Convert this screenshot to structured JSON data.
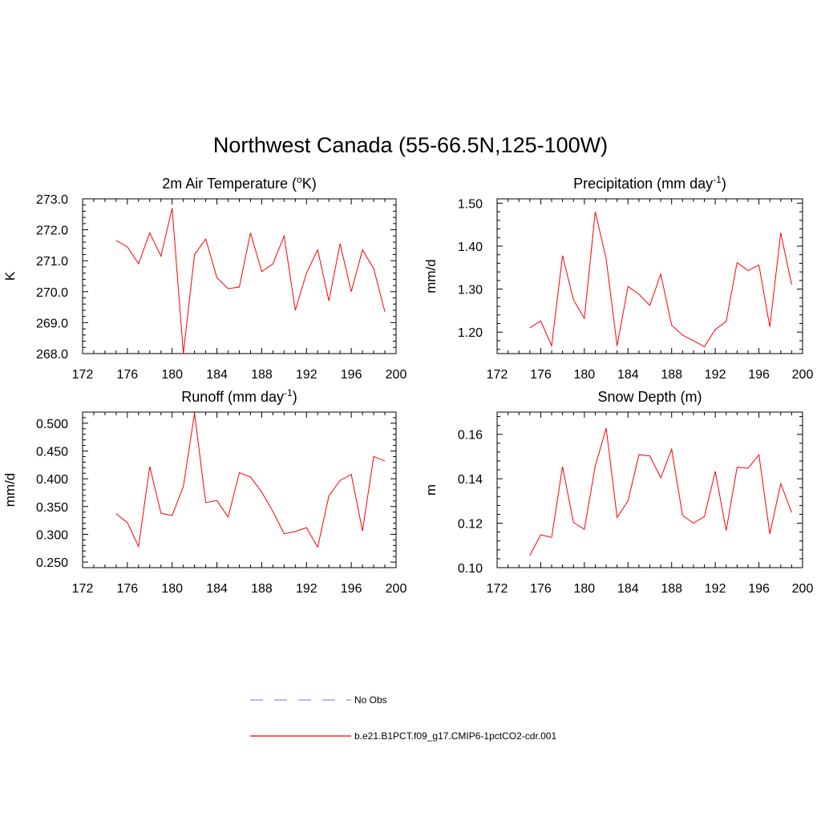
{
  "figure": {
    "title": "Northwest Canada (55-66.5N,125-100W)"
  },
  "legend": [
    {
      "label": "No Obs",
      "color": "#8c8cff",
      "style": "dashed"
    },
    {
      "label": "b.e21.B1PCT.f09_g17.CMIP6-1pctCO2-cdr.001",
      "color": "#ff0000",
      "style": "solid"
    }
  ],
  "chart_data": [
    {
      "type": "line",
      "title": "2m Air Temperature (oK)",
      "title_main": "2m Air Temperature (",
      "title_sup": "o",
      "title_end": "K)",
      "ylabel": "K",
      "xlim": [
        172,
        200
      ],
      "ylim": [
        268.0,
        273.0
      ],
      "xticks": [
        172,
        176,
        180,
        184,
        188,
        192,
        196,
        200
      ],
      "yticks": [
        268.0,
        269.0,
        270.0,
        271.0,
        272.0,
        273.0
      ],
      "ytick_labels": [
        "268.0",
        "269.0",
        "270.0",
        "271.0",
        "272.0",
        "273.0"
      ],
      "series": [
        {
          "color": "#ff0000",
          "x": [
            175,
            176,
            177,
            178,
            179,
            180,
            181,
            182,
            183,
            184,
            185,
            186,
            187,
            188,
            189,
            190,
            191,
            192,
            193,
            194,
            195,
            196,
            197,
            198,
            199
          ],
          "values": [
            271.65,
            271.45,
            270.9,
            271.9,
            271.15,
            272.7,
            268.0,
            271.2,
            271.7,
            270.45,
            270.1,
            270.15,
            271.9,
            270.65,
            270.9,
            271.8,
            269.4,
            270.6,
            271.35,
            269.7,
            271.55,
            270.0,
            271.35,
            270.75,
            269.35
          ]
        }
      ]
    },
    {
      "type": "line",
      "title": "Precipitation (mm day-1)",
      "title_main": "Precipitation (mm day",
      "title_sup": "-1",
      "title_end": ")",
      "ylabel": "mm/d",
      "xlim": [
        172,
        200
      ],
      "ylim": [
        1.15,
        1.51
      ],
      "xticks": [
        172,
        176,
        180,
        184,
        188,
        192,
        196,
        200
      ],
      "yticks": [
        1.2,
        1.3,
        1.4,
        1.5
      ],
      "ytick_labels": [
        "1.20",
        "1.30",
        "1.40",
        "1.50"
      ],
      "series": [
        {
          "color": "#ff0000",
          "x": [
            175,
            176,
            177,
            178,
            179,
            180,
            181,
            182,
            183,
            184,
            185,
            186,
            187,
            188,
            189,
            190,
            191,
            192,
            193,
            194,
            195,
            196,
            197,
            198,
            199
          ],
          "values": [
            1.21,
            1.226,
            1.168,
            1.378,
            1.275,
            1.232,
            1.48,
            1.37,
            1.168,
            1.306,
            1.288,
            1.262,
            1.335,
            1.216,
            1.193,
            1.18,
            1.166,
            1.206,
            1.225,
            1.362,
            1.343,
            1.356,
            1.212,
            1.431,
            1.31
          ]
        }
      ]
    },
    {
      "type": "line",
      "title": "Runoff (mm day-1)",
      "title_main": "Runoff (mm day",
      "title_sup": "-1",
      "title_end": ")",
      "ylabel": "mm/d",
      "xlim": [
        172,
        200
      ],
      "ylim": [
        0.24,
        0.52
      ],
      "xticks": [
        172,
        176,
        180,
        184,
        188,
        192,
        196,
        200
      ],
      "yticks": [
        0.25,
        0.3,
        0.35,
        0.4,
        0.45,
        0.5
      ],
      "ytick_labels": [
        "0.250",
        "0.300",
        "0.350",
        "0.400",
        "0.450",
        "0.500"
      ],
      "series": [
        {
          "color": "#ff0000",
          "x": [
            175,
            176,
            177,
            178,
            179,
            180,
            181,
            182,
            183,
            184,
            185,
            186,
            187,
            188,
            189,
            190,
            191,
            192,
            193,
            194,
            195,
            196,
            197,
            198,
            199
          ],
          "values": [
            0.337,
            0.321,
            0.278,
            0.422,
            0.338,
            0.334,
            0.386,
            0.518,
            0.357,
            0.361,
            0.331,
            0.411,
            0.403,
            0.376,
            0.341,
            0.301,
            0.305,
            0.312,
            0.277,
            0.369,
            0.397,
            0.408,
            0.306,
            0.44,
            0.432
          ]
        }
      ]
    },
    {
      "type": "line",
      "title": "Snow Depth (m)",
      "title_main": "Snow Depth (m)",
      "title_sup": "",
      "title_end": "",
      "ylabel": "m",
      "xlim": [
        172,
        200
      ],
      "ylim": [
        0.1,
        0.17
      ],
      "xticks": [
        172,
        176,
        180,
        184,
        188,
        192,
        196,
        200
      ],
      "yticks": [
        0.1,
        0.12,
        0.14,
        0.16
      ],
      "ytick_labels": [
        "0.10",
        "0.12",
        "0.14",
        "0.16"
      ],
      "series": [
        {
          "color": "#ff0000",
          "x": [
            175,
            176,
            177,
            178,
            179,
            180,
            181,
            182,
            183,
            184,
            185,
            186,
            187,
            188,
            189,
            190,
            191,
            192,
            193,
            194,
            195,
            196,
            197,
            198,
            199
          ],
          "values": [
            0.1055,
            0.1148,
            0.1136,
            0.1455,
            0.1203,
            0.1173,
            0.1458,
            0.1628,
            0.1226,
            0.13,
            0.1508,
            0.1503,
            0.1404,
            0.1533,
            0.1235,
            0.12,
            0.123,
            0.1433,
            0.1167,
            0.1452,
            0.1447,
            0.1508,
            0.1152,
            0.1378,
            0.1248
          ]
        }
      ]
    }
  ]
}
